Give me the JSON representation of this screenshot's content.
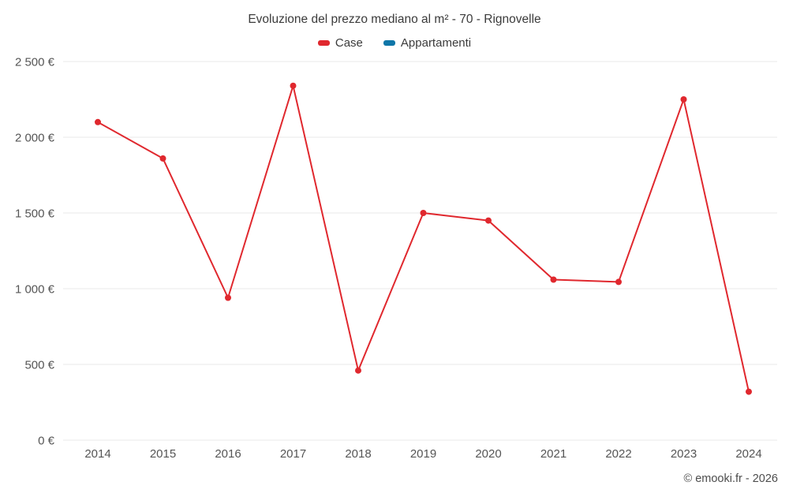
{
  "footer": {
    "credit": "© emooki.fr - 2026"
  },
  "chart_data": {
    "type": "line",
    "title": "Evoluzione del prezzo mediano al m² - 70 - Rignovelle",
    "categories": [
      "2014",
      "2015",
      "2016",
      "2017",
      "2018",
      "2019",
      "2020",
      "2021",
      "2022",
      "2023",
      "2024"
    ],
    "series": [
      {
        "name": "Case",
        "color": "#e0282e",
        "values": [
          2100,
          1860,
          940,
          2340,
          460,
          1500,
          1450,
          1060,
          1045,
          2250,
          320
        ]
      },
      {
        "name": "Appartamenti",
        "color": "#0f76a8",
        "values": []
      }
    ],
    "ylim": [
      0,
      2500
    ],
    "yticks": [
      {
        "value": 0,
        "label": "0 €"
      },
      {
        "value": 500,
        "label": "500 €"
      },
      {
        "value": 1000,
        "label": "1 000 €"
      },
      {
        "value": 1500,
        "label": "1 500 €"
      },
      {
        "value": 2000,
        "label": "2 000 €"
      },
      {
        "value": 2500,
        "label": "2 500 €"
      }
    ],
    "grid": true,
    "grid_color": "#e8e8e8",
    "legend_position": "top",
    "xlabel": "",
    "ylabel": ""
  }
}
